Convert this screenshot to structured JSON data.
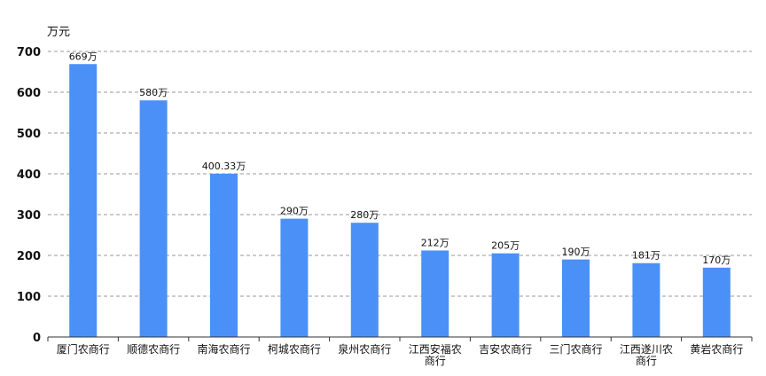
{
  "chart_data": {
    "type": "bar",
    "y_unit": "万元",
    "categories": [
      [
        "厦门农商行"
      ],
      [
        "顺德农商行"
      ],
      [
        "南海农商行"
      ],
      [
        "柯城农商行"
      ],
      [
        "泉州农商行"
      ],
      [
        "江西安福农",
        "商行"
      ],
      [
        "吉安农商行"
      ],
      [
        "三门农商行"
      ],
      [
        "江西遂川农",
        "商行"
      ],
      [
        "黄岩农商行"
      ]
    ],
    "values": [
      669,
      580,
      400.33,
      290,
      280,
      212,
      205,
      190,
      181,
      170
    ],
    "data_labels": [
      "669万",
      "580万",
      "400.33万",
      "290万",
      "280万",
      "212万",
      "205万",
      "190万",
      "181万",
      "170万"
    ],
    "ylim": [
      0,
      700
    ],
    "yticks": [
      0,
      100,
      200,
      300,
      400,
      500,
      600,
      700
    ],
    "grid": "dashed horizontal",
    "bar_color": "#4a90f7"
  }
}
